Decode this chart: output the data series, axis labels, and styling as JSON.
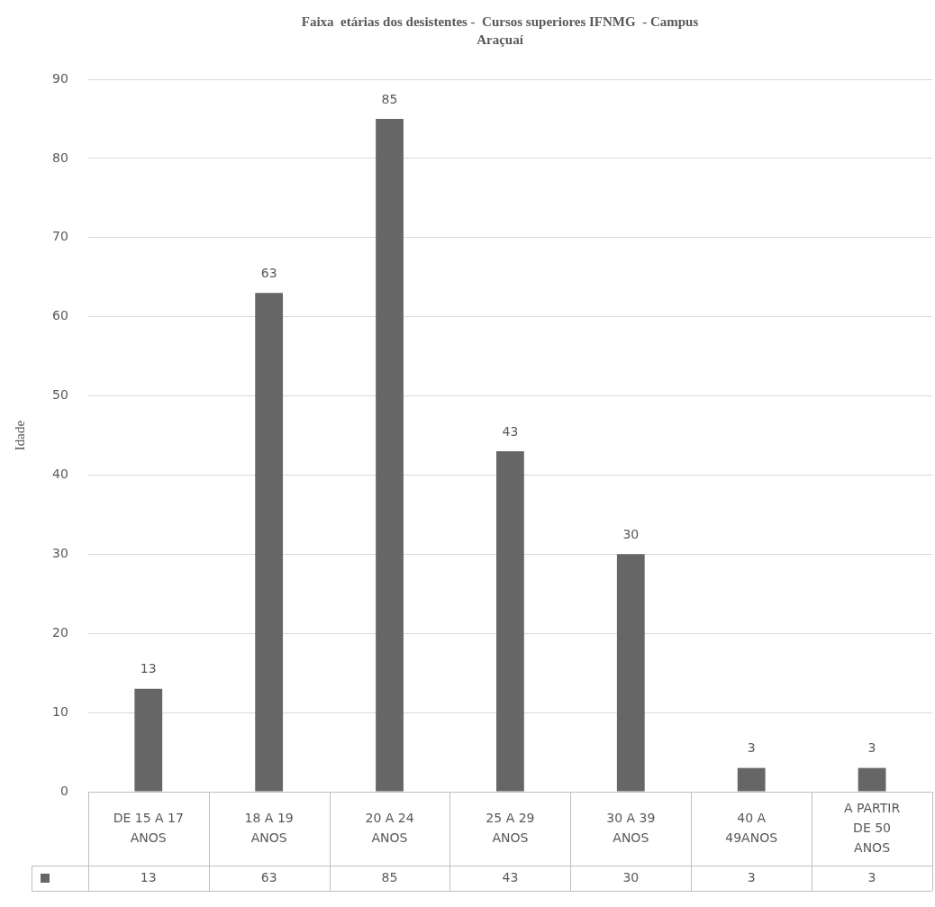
{
  "chart_data": {
    "type": "bar",
    "title": "Faixa  etárias dos desistentes -  Cursos superiores IFNMG  - Campus Araçuaí",
    "ylabel": "Idade",
    "categories": [
      "DE 15 A 17 ANOS",
      "18 A 19 ANOS",
      "20 A 24 ANOS",
      "25 A 29 ANOS",
      "30 A 39 ANOS",
      "40 A 49ANOS",
      "A PARTIR DE 50 ANOS"
    ],
    "values": [
      13,
      63,
      85,
      43,
      30,
      3,
      3
    ],
    "value_labels": [
      "13",
      "63",
      "85",
      "43",
      "30",
      "3",
      "3"
    ],
    "color": "#666666",
    "ylim": [
      0,
      90
    ],
    "yticks": [
      0,
      10,
      20,
      30,
      40,
      50,
      60,
      70,
      80,
      90
    ],
    "grid": "y",
    "legend": false,
    "annotations": [
      "13",
      "63",
      "85",
      "43",
      "30",
      "3",
      "3"
    ]
  }
}
